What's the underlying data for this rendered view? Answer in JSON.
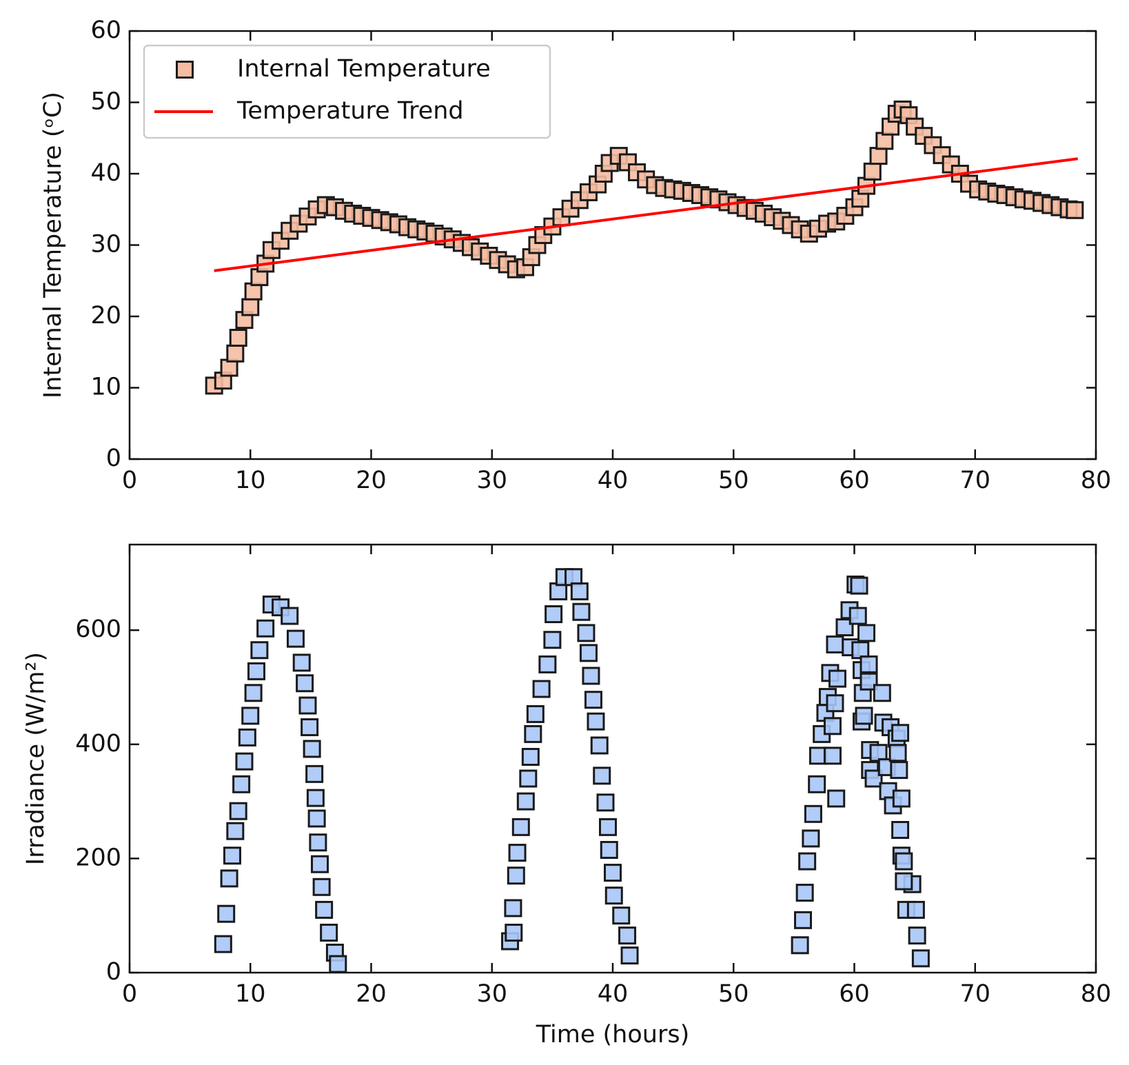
{
  "chart_data": [
    {
      "type": "scatter",
      "ylabel": "Internal Temperature (ᵒC)",
      "legend": "upper left",
      "xlim": [
        0,
        80
      ],
      "xticks": [
        0,
        10,
        20,
        30,
        40,
        50,
        60,
        70,
        80
      ],
      "ylim": [
        0,
        60
      ],
      "yticks": [
        0,
        10,
        20,
        30,
        40,
        50,
        60
      ],
      "series": [
        {
          "name": "Internal Temperature",
          "type": "scatter",
          "marker": "square",
          "color": "#f5bca2",
          "x": [
            7,
            7.75,
            8.25,
            8.75,
            9,
            9.5,
            10,
            10.25,
            10.75,
            11.25,
            11.75,
            12.5,
            13.25,
            14,
            14.75,
            15.5,
            16.25,
            17,
            17.75,
            18.5,
            19.25,
            20,
            20.75,
            21.5,
            22.25,
            23,
            23.75,
            24.5,
            25.25,
            26,
            26.75,
            27.5,
            28.25,
            29,
            29.75,
            30.5,
            31.25,
            32,
            32.75,
            33.25,
            33.75,
            34.25,
            35,
            35.75,
            36.5,
            37.25,
            38,
            38.75,
            39.25,
            39.75,
            40.5,
            41.25,
            42,
            42.75,
            43.5,
            44.25,
            45,
            45.75,
            46.5,
            47.25,
            48,
            48.75,
            49.5,
            50.25,
            51,
            51.75,
            52.5,
            53.25,
            54,
            54.75,
            55.5,
            56.25,
            57,
            57.75,
            58.5,
            59.25,
            60,
            60.5,
            61,
            61.5,
            62,
            62.5,
            63,
            63.5,
            64,
            64.5,
            65,
            65.75,
            66.5,
            67.25,
            68,
            68.75,
            69.5,
            70.25,
            71,
            71.75,
            72.5,
            73.25,
            74,
            74.75,
            75.5,
            76.25,
            77,
            77.75,
            78.25
          ],
          "values": [
            10.3,
            11,
            12.8,
            14.8,
            17,
            19.5,
            21.3,
            23.5,
            25.5,
            27.4,
            29.3,
            30.6,
            32,
            33,
            34,
            35,
            35.6,
            35.3,
            34.8,
            34.4,
            34.1,
            33.8,
            33.5,
            33.2,
            32.9,
            32.5,
            32.2,
            31.9,
            31.6,
            31.2,
            30.8,
            30.3,
            29.7,
            29.1,
            28.5,
            27.9,
            27.3,
            26.6,
            26.9,
            28.3,
            30,
            31.4,
            32.6,
            33.9,
            35.1,
            36.3,
            37.4,
            38.5,
            40,
            41.5,
            42.5,
            41.6,
            40.2,
            39.2,
            38.4,
            38,
            37.8,
            37.6,
            37.3,
            37,
            36.7,
            36.4,
            36,
            35.6,
            35.2,
            34.8,
            34.4,
            33.9,
            33.4,
            32.8,
            32.2,
            31.6,
            32.3,
            33,
            33.3,
            34.1,
            35.3,
            36.5,
            38.3,
            40.3,
            42.5,
            44.6,
            46.6,
            48.4,
            49,
            48.2,
            46.6,
            45.3,
            44,
            42.6,
            41.3,
            40,
            38.6,
            37.8,
            37.5,
            37.2,
            37,
            36.7,
            36.4,
            36.2,
            35.9,
            35.6,
            35.3,
            35,
            34.9
          ]
        },
        {
          "name": "Temperature Trend",
          "type": "line",
          "color": "#ff0000",
          "x": [
            7,
            78.5
          ],
          "values": [
            26.4,
            42.1
          ]
        }
      ]
    },
    {
      "type": "scatter",
      "xlabel": "Time (hours)",
      "ylabel": "Irradiance (W/m²)",
      "xlim": [
        0,
        80
      ],
      "xticks": [
        0,
        10,
        20,
        30,
        40,
        50,
        60,
        70,
        80
      ],
      "ylim": [
        0,
        750
      ],
      "yticks": [
        0,
        200,
        400,
        600
      ],
      "series": [
        {
          "type": "scatter",
          "marker": "square",
          "color": "#a9c7f7",
          "x": [
            7.75,
            8,
            8.25,
            8.5,
            8.75,
            9,
            9.25,
            9.5,
            9.75,
            10,
            10.25,
            10.5,
            10.75,
            11.25,
            11.75,
            12.5,
            13.25,
            13.75,
            14.25,
            14.5,
            14.75,
            14.9,
            15.1,
            15.3,
            15.4,
            15.5,
            15.6,
            15.75,
            15.9,
            16.1,
            16.5,
            17,
            17.25,
            31.5,
            31.75,
            31.8,
            32,
            32.1,
            32.4,
            32.8,
            33,
            33.2,
            33.4,
            33.6,
            34.1,
            34.6,
            35,
            35.1,
            35.5,
            36,
            36.75,
            37.25,
            37.4,
            37.8,
            38,
            38.2,
            38.4,
            38.6,
            38.9,
            39.1,
            39.4,
            39.6,
            39.7,
            40,
            40.1,
            40.7,
            41.2,
            41.4,
            55.5,
            55.75,
            55.9,
            56.1,
            56.4,
            56.6,
            56.9,
            57,
            57.3,
            57.6,
            57.8,
            58,
            58.2,
            58.4,
            58.4,
            58.5,
            58.2,
            58.6,
            59.2,
            59.7,
            59.6,
            60.1,
            60.4,
            60.3,
            60.5,
            60.6,
            60.7,
            60.6,
            60.8,
            61,
            61.2,
            61.2,
            61.3,
            61.3,
            61.6,
            62,
            62.3,
            62.4,
            62.7,
            62.8,
            63,
            63.2,
            63.5,
            63.6,
            63.7,
            63.8,
            63.9,
            63.8,
            63.9,
            64.1,
            64.3,
            64.8,
            65.1,
            65.2,
            65.5,
            64.1
          ],
          "values": [
            50,
            103,
            165,
            205,
            248,
            283,
            330,
            370,
            412,
            450,
            490,
            528,
            565,
            603,
            645,
            640,
            625,
            585,
            543,
            507,
            468,
            430,
            392,
            348,
            306,
            270,
            228,
            190,
            150,
            110,
            70,
            35,
            15,
            55,
            113,
            70,
            170,
            210,
            255,
            300,
            340,
            378,
            418,
            453,
            497,
            540,
            583,
            628,
            668,
            693,
            693,
            668,
            632,
            595,
            560,
            520,
            478,
            440,
            398,
            345,
            298,
            255,
            215,
            175,
            135,
            100,
            65,
            30,
            48,
            92,
            140,
            195,
            235,
            278,
            330,
            380,
            418,
            455,
            483,
            525,
            432,
            575,
            472,
            305,
            380,
            515,
            605,
            570,
            635,
            680,
            678,
            625,
            565,
            530,
            490,
            440,
            450,
            595,
            540,
            510,
            390,
            355,
            340,
            385,
            490,
            438,
            360,
            318,
            430,
            293,
            410,
            385,
            355,
            420,
            305,
            250,
            205,
            195,
            110,
            155,
            110,
            65,
            25,
            160
          ]
        }
      ]
    }
  ]
}
